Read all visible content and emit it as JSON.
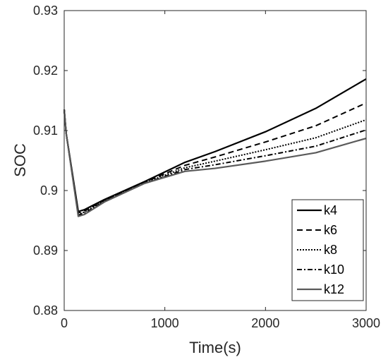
{
  "chart_data": {
    "type": "line",
    "title": "",
    "xlabel": "Time(s)",
    "ylabel": "SOC",
    "xlim": [
      0,
      3000
    ],
    "ylim": [
      0.88,
      0.93
    ],
    "xticks": [
      0,
      1000,
      2000,
      3000
    ],
    "xtick_labels": [
      "0",
      "1000",
      "2000",
      "3000"
    ],
    "yticks": [
      0.88,
      0.89,
      0.9,
      0.91,
      0.92,
      0.93
    ],
    "ytick_labels": [
      "0.88",
      "0.89",
      "0.9",
      "0.91",
      "0.92",
      "0.93"
    ],
    "grid": false,
    "legend_position": "bottom-right",
    "series": [
      {
        "name": "k4",
        "color": "#000000",
        "dash": "solid",
        "x": [
          0,
          20,
          140,
          200,
          400,
          800,
          1200,
          1500,
          2000,
          2500,
          3000
        ],
        "y": [
          0.9135,
          0.9095,
          0.8965,
          0.8968,
          0.8985,
          0.9015,
          0.9047,
          0.9065,
          0.9098,
          0.9137,
          0.9186
        ]
      },
      {
        "name": "k6",
        "color": "#000000",
        "dash": "dashed",
        "x": [
          0,
          20,
          140,
          200,
          400,
          800,
          1200,
          1500,
          2000,
          2500,
          3000
        ],
        "y": [
          0.9135,
          0.9095,
          0.8963,
          0.8966,
          0.8984,
          0.9014,
          0.9042,
          0.9056,
          0.9081,
          0.9108,
          0.9146
        ]
      },
      {
        "name": "k8",
        "color": "#000000",
        "dash": "dotted",
        "x": [
          0,
          20,
          140,
          200,
          400,
          800,
          1200,
          1500,
          2000,
          2500,
          3000
        ],
        "y": [
          0.9135,
          0.9095,
          0.8961,
          0.8964,
          0.8983,
          0.9013,
          0.9038,
          0.9049,
          0.9068,
          0.9088,
          0.9118
        ]
      },
      {
        "name": "k10",
        "color": "#000000",
        "dash": "dashdot",
        "x": [
          0,
          20,
          140,
          200,
          400,
          800,
          1200,
          1500,
          2000,
          2500,
          3000
        ],
        "y": [
          0.9135,
          0.9095,
          0.8959,
          0.8962,
          0.8982,
          0.9012,
          0.9035,
          0.9043,
          0.9058,
          0.9074,
          0.9101
        ]
      },
      {
        "name": "k12",
        "color": "#5a5a5a",
        "dash": "solid",
        "x": [
          0,
          20,
          140,
          200,
          400,
          800,
          1200,
          1500,
          2000,
          2500,
          3000
        ],
        "y": [
          0.9135,
          0.9095,
          0.8957,
          0.896,
          0.8981,
          0.9012,
          0.9032,
          0.9037,
          0.9049,
          0.9063,
          0.9087
        ]
      }
    ]
  }
}
